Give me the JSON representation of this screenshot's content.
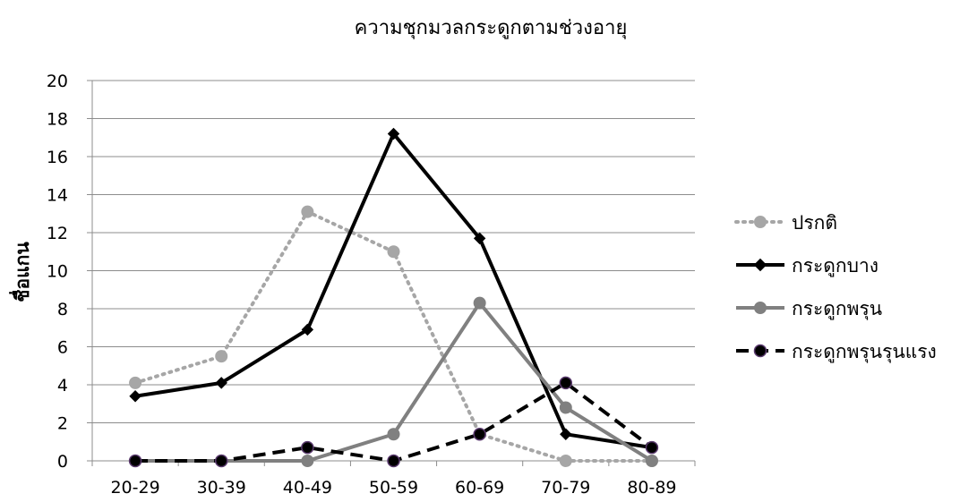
{
  "chart_data": {
    "type": "line",
    "title": "ความชุกมวลกระดูกตามช่วงอายุ",
    "xlabel": "",
    "ylabel": "ชื่อแกน",
    "ylim": [
      0,
      20
    ],
    "yticks": [
      "0",
      "2",
      "4",
      "6",
      "8",
      "10",
      "12",
      "14",
      "16",
      "18",
      "20"
    ],
    "categories": [
      "20-29",
      "30-39",
      "40-49",
      "50-59",
      "60-69",
      "70-79",
      "80-89"
    ],
    "grid": true,
    "legend_position": "right",
    "series": [
      {
        "name": "ปรกติ",
        "values": [
          4.1,
          5.5,
          13.1,
          11.0,
          1.4,
          0,
          0
        ],
        "color": "#a6a6a6",
        "marker": "circle",
        "dash": "dotted"
      },
      {
        "name": "กระดูกบาง",
        "values": [
          3.4,
          4.1,
          6.9,
          17.2,
          11.7,
          1.4,
          0.7
        ],
        "color": "#000000",
        "marker": "diamond",
        "dash": "solid"
      },
      {
        "name": "กระดูกพรุน",
        "values": [
          0,
          0,
          0,
          1.4,
          8.3,
          2.8,
          0
        ],
        "color": "#808080",
        "marker": "circle",
        "dash": "solid"
      },
      {
        "name": "กระดูกพรุนรุนแรง",
        "values": [
          0,
          0,
          0.7,
          0,
          1.4,
          4.1,
          0.7
        ],
        "color": "#000000",
        "marker": "circle",
        "dash": "dashed"
      }
    ]
  }
}
